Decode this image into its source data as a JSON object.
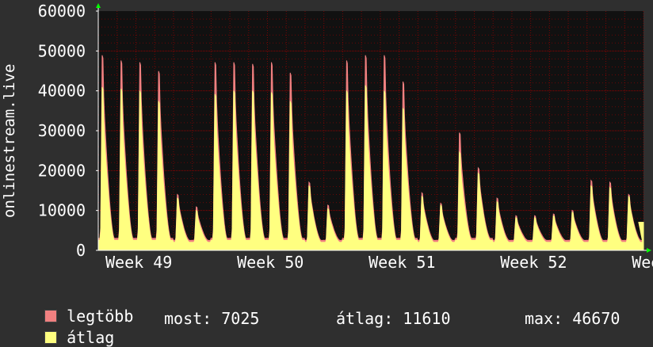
{
  "chart_data": {
    "type": "area",
    "ylabel": "onlinestream.live",
    "ylim": [
      0,
      60000
    ],
    "yticks": [
      0,
      10000,
      20000,
      30000,
      40000,
      50000,
      60000
    ],
    "ytick_labels": [
      "0",
      "10000",
      "20000",
      "30000",
      "40000",
      "50000",
      "60000"
    ],
    "x_labels": [
      "Week 49",
      "Week 50",
      "Week 51",
      "Week 52",
      "Week"
    ],
    "grid": true,
    "colors": {
      "background": "#2f2f2f",
      "plot": "#111111",
      "grid": "#a00000",
      "max_series": "#f08080",
      "avg_series": "#ffff80",
      "axis": "#ffffff",
      "arrow": "#00ff00"
    },
    "days": [
      {
        "max_peak": 55000,
        "avg_peak": 46000,
        "max_base": 3000,
        "avg_base": 2500
      },
      {
        "max_peak": 53500,
        "avg_peak": 45500,
        "max_base": 3000,
        "avg_base": 2500
      },
      {
        "max_peak": 53000,
        "avg_peak": 45000,
        "max_base": 3000,
        "avg_base": 2500
      },
      {
        "max_peak": 50500,
        "avg_peak": 42000,
        "max_base": 3000,
        "avg_base": 2500
      },
      {
        "max_peak": 15500,
        "avg_peak": 14500,
        "max_base": 2500,
        "avg_base": 2000
      },
      {
        "max_peak": 12000,
        "avg_peak": 11000,
        "max_base": 2500,
        "avg_base": 2000
      },
      {
        "max_peak": 53000,
        "avg_peak": 44000,
        "max_base": 3000,
        "avg_base": 2500
      },
      {
        "max_peak": 53000,
        "avg_peak": 45000,
        "max_base": 3000,
        "avg_base": 2500
      },
      {
        "max_peak": 52500,
        "avg_peak": 45000,
        "max_base": 3000,
        "avg_base": 2500
      },
      {
        "max_peak": 53000,
        "avg_peak": 44500,
        "max_base": 3000,
        "avg_base": 2500
      },
      {
        "max_peak": 50000,
        "avg_peak": 42000,
        "max_base": 3000,
        "avg_base": 2500
      },
      {
        "max_peak": 19000,
        "avg_peak": 18000,
        "max_base": 2500,
        "avg_base": 2000
      },
      {
        "max_peak": 12500,
        "avg_peak": 11500,
        "max_base": 2500,
        "avg_base": 2000
      },
      {
        "max_peak": 53500,
        "avg_peak": 45000,
        "max_base": 3000,
        "avg_base": 2500
      },
      {
        "max_peak": 55000,
        "avg_peak": 46500,
        "max_base": 3000,
        "avg_base": 2500
      },
      {
        "max_peak": 55000,
        "avg_peak": 45000,
        "max_base": 3000,
        "avg_base": 2500
      },
      {
        "max_peak": 47500,
        "avg_peak": 40000,
        "max_base": 3000,
        "avg_base": 2500
      },
      {
        "max_peak": 16000,
        "avg_peak": 15000,
        "max_base": 2500,
        "avg_base": 2000
      },
      {
        "max_peak": 13000,
        "avg_peak": 12500,
        "max_base": 2500,
        "avg_base": 2000
      },
      {
        "max_peak": 33000,
        "avg_peak": 27500,
        "max_base": 3000,
        "avg_base": 2500
      },
      {
        "max_peak": 23000,
        "avg_peak": 21500,
        "max_base": 3000,
        "avg_base": 2500
      },
      {
        "max_peak": 14500,
        "avg_peak": 13500,
        "max_base": 2500,
        "avg_base": 2000
      },
      {
        "max_peak": 9500,
        "avg_peak": 9000,
        "max_base": 2500,
        "avg_base": 2000
      },
      {
        "max_peak": 9500,
        "avg_peak": 9000,
        "max_base": 2500,
        "avg_base": 2000
      },
      {
        "max_peak": 10000,
        "avg_peak": 9500,
        "max_base": 2500,
        "avg_base": 2000
      },
      {
        "max_peak": 11000,
        "avg_peak": 10500,
        "max_base": 2500,
        "avg_base": 2000
      },
      {
        "max_peak": 19500,
        "avg_peak": 18000,
        "max_base": 2500,
        "avg_base": 2000
      },
      {
        "max_peak": 19000,
        "avg_peak": 17500,
        "max_base": 2500,
        "avg_base": 2000
      },
      {
        "max_peak": 15500,
        "avg_peak": 15000,
        "max_base": 2500,
        "avg_base": 2000
      }
    ],
    "last_value": 7025,
    "series": [
      {
        "name": "legtöbb",
        "color": "#f08080"
      },
      {
        "name": "átlag",
        "color": "#ffff80"
      }
    ]
  },
  "legend": {
    "max_label": "legtöbb",
    "avg_label": "átlag",
    "now_text": "most: 7025",
    "avg_text": "átlag: 11610",
    "max_text": "max: 46670"
  }
}
